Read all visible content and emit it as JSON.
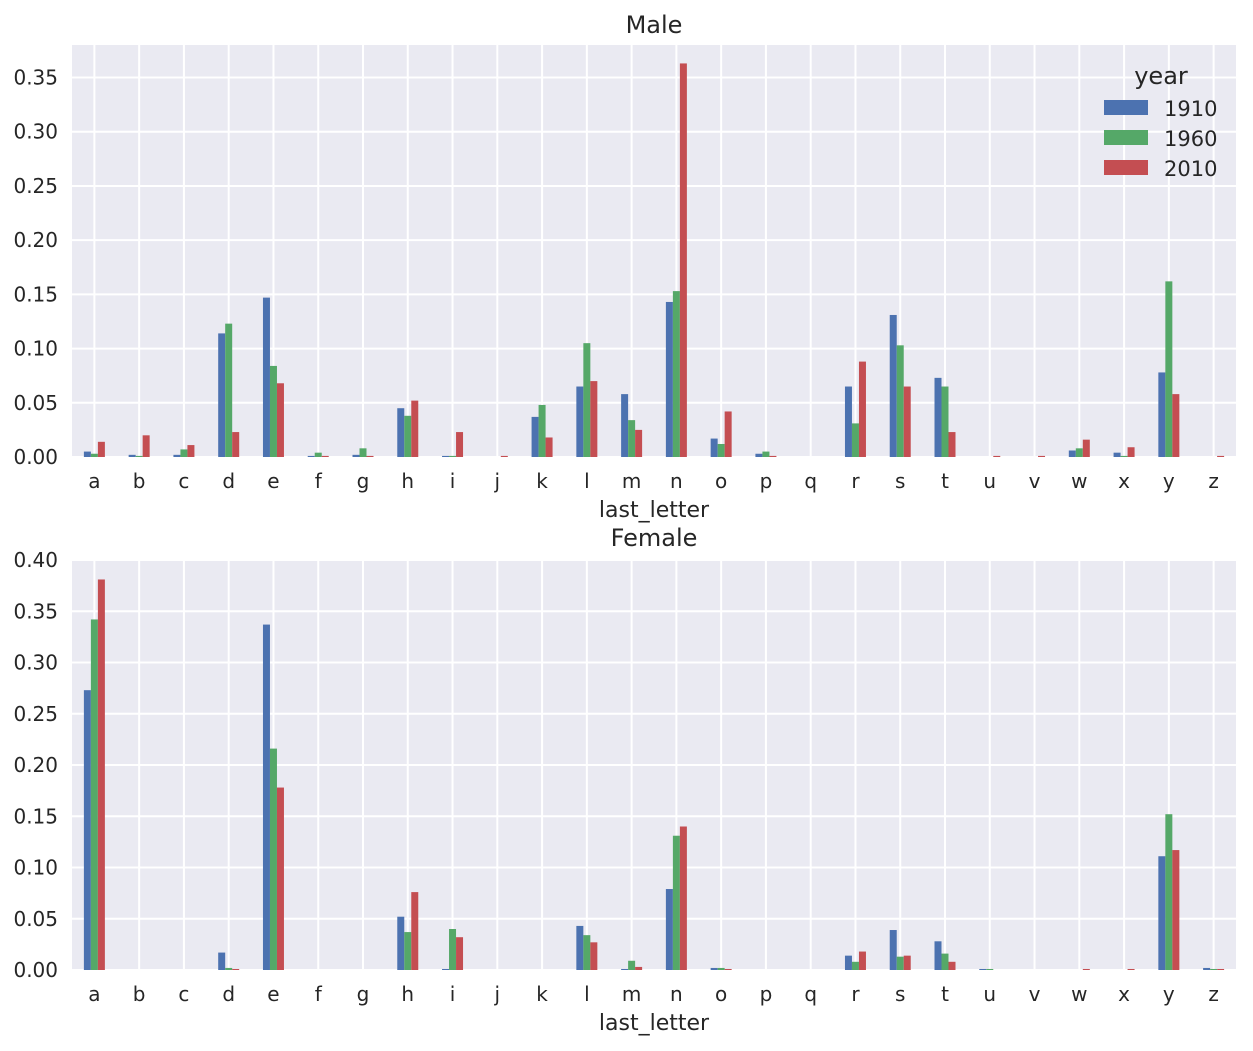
{
  "chart_data": [
    {
      "type": "bar",
      "title": "Male",
      "xlabel": "last_letter",
      "ylabel": "",
      "ylim": [
        0,
        0.38
      ],
      "yticks": [
        "0.00",
        "0.05",
        "0.10",
        "0.15",
        "0.20",
        "0.25",
        "0.30",
        "0.35"
      ],
      "grid": true,
      "legend": {
        "title": "year",
        "placement": "top-right"
      },
      "categories": [
        "a",
        "b",
        "c",
        "d",
        "e",
        "f",
        "g",
        "h",
        "i",
        "j",
        "k",
        "l",
        "m",
        "n",
        "o",
        "p",
        "q",
        "r",
        "s",
        "t",
        "u",
        "v",
        "w",
        "x",
        "y",
        "z"
      ],
      "series": [
        {
          "name": "1910",
          "color": "#4c72b0",
          "values": [
            0.005,
            0.002,
            0.002,
            0.114,
            0.147,
            0.001,
            0.002,
            0.045,
            0.001,
            0.0,
            0.037,
            0.065,
            0.058,
            0.143,
            0.017,
            0.003,
            0.0,
            0.065,
            0.131,
            0.073,
            0.0,
            0.0,
            0.006,
            0.004,
            0.078,
            0.0
          ]
        },
        {
          "name": "1960",
          "color": "#55a868",
          "values": [
            0.003,
            0.001,
            0.007,
            0.123,
            0.084,
            0.004,
            0.008,
            0.038,
            0.001,
            0.0,
            0.048,
            0.105,
            0.034,
            0.153,
            0.012,
            0.005,
            0.0,
            0.031,
            0.103,
            0.065,
            0.0,
            0.0,
            0.008,
            0.001,
            0.162,
            0.0
          ]
        },
        {
          "name": "2010",
          "color": "#c44e52",
          "values": [
            0.014,
            0.02,
            0.011,
            0.023,
            0.068,
            0.001,
            0.001,
            0.052,
            0.023,
            0.001,
            0.018,
            0.07,
            0.025,
            0.363,
            0.042,
            0.001,
            0.0,
            0.088,
            0.065,
            0.023,
            0.001,
            0.001,
            0.016,
            0.009,
            0.058,
            0.001
          ]
        }
      ]
    },
    {
      "type": "bar",
      "title": "Female",
      "xlabel": "last_letter",
      "ylabel": "",
      "ylim": [
        0,
        0.4
      ],
      "yticks": [
        "0.00",
        "0.05",
        "0.10",
        "0.15",
        "0.20",
        "0.25",
        "0.30",
        "0.35",
        "0.40"
      ],
      "grid": true,
      "categories": [
        "a",
        "b",
        "c",
        "d",
        "e",
        "f",
        "g",
        "h",
        "i",
        "j",
        "k",
        "l",
        "m",
        "n",
        "o",
        "p",
        "q",
        "r",
        "s",
        "t",
        "u",
        "v",
        "w",
        "x",
        "y",
        "z"
      ],
      "series": [
        {
          "name": "1910",
          "color": "#4c72b0",
          "values": [
            0.273,
            0.0,
            0.0,
            0.017,
            0.337,
            0.0,
            0.0,
            0.052,
            0.001,
            0.0,
            0.0,
            0.043,
            0.001,
            0.079,
            0.002,
            0.0,
            0.0,
            0.014,
            0.039,
            0.028,
            0.001,
            0.0,
            0.0,
            0.0,
            0.111,
            0.002
          ]
        },
        {
          "name": "1960",
          "color": "#55a868",
          "values": [
            0.342,
            0.0,
            0.0,
            0.002,
            0.216,
            0.0,
            0.0,
            0.037,
            0.04,
            0.0,
            0.0,
            0.034,
            0.009,
            0.131,
            0.002,
            0.0,
            0.0,
            0.008,
            0.013,
            0.016,
            0.001,
            0.0,
            0.0,
            0.0,
            0.152,
            0.001
          ]
        },
        {
          "name": "2010",
          "color": "#c44e52",
          "values": [
            0.381,
            0.0,
            0.0,
            0.001,
            0.178,
            0.0,
            0.0,
            0.076,
            0.032,
            0.0,
            0.0,
            0.027,
            0.003,
            0.14,
            0.001,
            0.0,
            0.0,
            0.018,
            0.014,
            0.008,
            0.0,
            0.0,
            0.001,
            0.001,
            0.117,
            0.001
          ]
        }
      ]
    }
  ]
}
